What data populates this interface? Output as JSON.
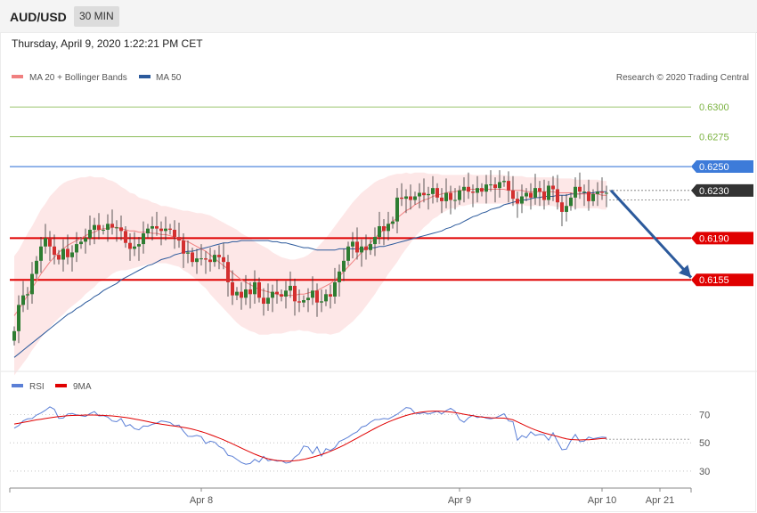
{
  "header": {
    "symbol": "AUD/USD",
    "timeframe": "30 MIN",
    "datetime": "Thursday, April 9, 2020 1:22:21 PM CET"
  },
  "legend": {
    "items": [
      {
        "label": "MA 20 + Bollinger Bands",
        "color": "#f08080"
      },
      {
        "label": "MA 50",
        "color": "#2c5a9c"
      }
    ],
    "credit": "Research © 2020 Trading Central"
  },
  "rsi_legend": {
    "items": [
      {
        "label": "RSI",
        "color": "#5b7fd6"
      },
      {
        "label": "9MA",
        "color": "#e00000"
      }
    ]
  },
  "colors": {
    "bullish": "#2e7d32",
    "bearish": "#d32f2f",
    "resistance": "#7cb342",
    "pivot": "#3d7bd9",
    "support": "#e00000",
    "current": "#333333",
    "band_fill": "#fde3e3",
    "ma20": "#f08080",
    "ma50": "#2c5a9c",
    "arrow": "#2c5a9c"
  },
  "chart_data": [
    {
      "type": "candlestick",
      "price_range": [
        0.6079,
        0.6318
      ],
      "levels": [
        {
          "value": 0.63,
          "label": "0.6300",
          "kind": "resistance"
        },
        {
          "value": 0.6275,
          "label": "0.6275",
          "kind": "resistance"
        },
        {
          "value": 0.625,
          "label": "0.6250",
          "kind": "pivot"
        },
        {
          "value": 0.623,
          "label": "0.6230",
          "kind": "current"
        },
        {
          "value": 0.619,
          "label": "0.6190",
          "kind": "support"
        },
        {
          "value": 0.6155,
          "label": "0.6155",
          "kind": "support"
        }
      ],
      "x_labels": [
        {
          "index": 42,
          "label": "Apr 8"
        },
        {
          "index": 100,
          "label": "Apr 9"
        },
        {
          "index": 132,
          "label": "Apr 10"
        },
        {
          "index": 145,
          "label": "Apr 21"
        }
      ],
      "close": [
        0.6112,
        0.6134,
        0.6142,
        0.6143,
        0.616,
        0.6171,
        0.6183,
        0.619,
        0.6183,
        0.6176,
        0.6172,
        0.6181,
        0.6174,
        0.6178,
        0.6185,
        0.6187,
        0.619,
        0.6197,
        0.6201,
        0.6197,
        0.6197,
        0.6202,
        0.6199,
        0.6199,
        0.6196,
        0.6186,
        0.6181,
        0.6183,
        0.6185,
        0.6194,
        0.6198,
        0.62,
        0.6198,
        0.6196,
        0.6198,
        0.6197,
        0.6191,
        0.6188,
        0.6177,
        0.6178,
        0.617,
        0.6173,
        0.6173,
        0.6172,
        0.617,
        0.6176,
        0.6174,
        0.617,
        0.6153,
        0.6142,
        0.6145,
        0.614,
        0.6147,
        0.6143,
        0.6153,
        0.614,
        0.6135,
        0.614,
        0.6145,
        0.6143,
        0.6141,
        0.6146,
        0.615,
        0.6137,
        0.6136,
        0.6138,
        0.614,
        0.6146,
        0.6136,
        0.6137,
        0.6143,
        0.6141,
        0.6153,
        0.6162,
        0.6171,
        0.6183,
        0.6187,
        0.6178,
        0.6183,
        0.618,
        0.6185,
        0.6191,
        0.62,
        0.6196,
        0.6202,
        0.6204,
        0.6224,
        0.6223,
        0.6225,
        0.6222,
        0.6225,
        0.6228,
        0.6226,
        0.6227,
        0.6232,
        0.6224,
        0.6221,
        0.6228,
        0.6222,
        0.6222,
        0.623,
        0.6233,
        0.6229,
        0.6228,
        0.6232,
        0.6229,
        0.6235,
        0.6235,
        0.6232,
        0.6237,
        0.6238,
        0.623,
        0.6223,
        0.6219,
        0.6225,
        0.6228,
        0.6224,
        0.6232,
        0.6229,
        0.6222,
        0.6234,
        0.6231,
        0.622,
        0.6212,
        0.6217,
        0.6224,
        0.6233,
        0.6229,
        0.6229,
        0.6221,
        0.6227,
        0.6229,
        0.6228,
        0.6228
      ],
      "ma50": [
        0.609,
        0.6093,
        0.6096,
        0.6099,
        0.6102,
        0.6105,
        0.6108,
        0.6111,
        0.6114,
        0.6117,
        0.612,
        0.6123,
        0.6126,
        0.6128,
        0.6131,
        0.6133,
        0.6136,
        0.6138,
        0.6141,
        0.6143,
        0.6146,
        0.6148,
        0.615,
        0.6152,
        0.6155,
        0.6157,
        0.6159,
        0.6161,
        0.6163,
        0.6165,
        0.6167,
        0.6168,
        0.617,
        0.6172,
        0.6173,
        0.6174,
        0.6176,
        0.6177,
        0.6178,
        0.6179,
        0.6179,
        0.618,
        0.6181,
        0.6182,
        0.6183,
        0.6184,
        0.6185,
        0.6186,
        0.6186,
        0.6187,
        0.6187,
        0.6188,
        0.6188,
        0.6188,
        0.6188,
        0.6188,
        0.6188,
        0.6188,
        0.6187,
        0.6187,
        0.6186,
        0.6186,
        0.6185,
        0.6184,
        0.6183,
        0.6182,
        0.6182,
        0.6181,
        0.618,
        0.618,
        0.618,
        0.618,
        0.618,
        0.6181,
        0.6181,
        0.6181,
        0.6181,
        0.6181,
        0.6181,
        0.6181,
        0.6182,
        0.6182,
        0.6183,
        0.6183,
        0.6184,
        0.6185,
        0.6186,
        0.6187,
        0.6188,
        0.6189,
        0.619,
        0.6191,
        0.6192,
        0.6193,
        0.6194,
        0.6195,
        0.6196,
        0.6198,
        0.6199,
        0.6201,
        0.6202,
        0.6204,
        0.6206,
        0.6208,
        0.6209,
        0.6211,
        0.6212,
        0.6214,
        0.6215,
        0.6216,
        0.6218,
        0.6219,
        0.622,
        0.6221,
        0.6222,
        0.6222,
        0.6223,
        0.6224,
        0.6224,
        0.6225,
        0.6225,
        0.6225,
        0.6226,
        0.6226,
        0.6226,
        0.6227,
        0.6227,
        0.6227,
        0.6228,
        0.6228,
        0.6228,
        0.6229,
        0.6229,
        0.6229
      ],
      "ma20": [
        0.6125,
        0.613,
        0.6136,
        0.6142,
        0.6148,
        0.6154,
        0.616,
        0.6165,
        0.617,
        0.6174,
        0.6178,
        0.6181,
        0.6184,
        0.6186,
        0.6188,
        0.619,
        0.6192,
        0.6194,
        0.6195,
        0.6197,
        0.6198,
        0.6198,
        0.6199,
        0.6199,
        0.6198,
        0.6197,
        0.6196,
        0.6196,
        0.6195,
        0.6195,
        0.6195,
        0.6194,
        0.6194,
        0.6193,
        0.6193,
        0.6192,
        0.6191,
        0.619,
        0.6188,
        0.6187,
        0.6185,
        0.6183,
        0.6181,
        0.6179,
        0.6176,
        0.6173,
        0.617,
        0.6167,
        0.6164,
        0.6161,
        0.6158,
        0.6155,
        0.6153,
        0.6151,
        0.6149,
        0.6147,
        0.6146,
        0.6145,
        0.6144,
        0.6143,
        0.6142,
        0.6142,
        0.6142,
        0.6142,
        0.6143,
        0.6143,
        0.6144,
        0.6145,
        0.6146,
        0.6148,
        0.615,
        0.6152,
        0.6155,
        0.6158,
        0.6162,
        0.6166,
        0.617,
        0.6174,
        0.6178,
        0.6182,
        0.6186,
        0.619,
        0.6194,
        0.6197,
        0.6201,
        0.6204,
        0.6207,
        0.621,
        0.6213,
        0.6215,
        0.6218,
        0.622,
        0.6222,
        0.6223,
        0.6225,
        0.6226,
        0.6227,
        0.6228,
        0.6229,
        0.6229,
        0.623,
        0.623,
        0.6231,
        0.6231,
        0.6231,
        0.6231,
        0.6231,
        0.6231,
        0.6231,
        0.6231,
        0.6231,
        0.623,
        0.623,
        0.623,
        0.623,
        0.6229,
        0.6229,
        0.6229,
        0.6229,
        0.6229,
        0.6229,
        0.6229,
        0.6228,
        0.6228,
        0.6228,
        0.6228,
        0.6227,
        0.6227,
        0.6227,
        0.6227,
        0.6227,
        0.6227,
        0.6226,
        0.6226
      ],
      "band_width": [
        0.005,
        0.005,
        0.0051,
        0.0052,
        0.0052,
        0.0053,
        0.0054,
        0.0054,
        0.0055,
        0.0055,
        0.0055,
        0.0055,
        0.0054,
        0.0053,
        0.0052,
        0.0051,
        0.0049,
        0.0048,
        0.0046,
        0.0044,
        0.0043,
        0.0041,
        0.0039,
        0.0037,
        0.0035,
        0.0034,
        0.0032,
        0.0031,
        0.0029,
        0.0028,
        0.0027,
        0.0026,
        0.0025,
        0.0024,
        0.0024,
        0.0024,
        0.0024,
        0.0024,
        0.0025,
        0.0026,
        0.0027,
        0.0028,
        0.003,
        0.0031,
        0.0033,
        0.0034,
        0.0035,
        0.0036,
        0.0037,
        0.0038,
        0.0039,
        0.0039,
        0.0039,
        0.0039,
        0.0038,
        0.0038,
        0.0037,
        0.0036,
        0.0034,
        0.0033,
        0.0032,
        0.0031,
        0.003,
        0.003,
        0.003,
        0.0031,
        0.0032,
        0.0034,
        0.0036,
        0.0038,
        0.004,
        0.0043,
        0.0045,
        0.0047,
        0.0048,
        0.0049,
        0.005,
        0.005,
        0.005,
        0.0049,
        0.0048,
        0.0047,
        0.0045,
        0.0043,
        0.0041,
        0.0039,
        0.0037,
        0.0034,
        0.0032,
        0.0029,
        0.0027,
        0.0025,
        0.0023,
        0.0021,
        0.0019,
        0.0018,
        0.0016,
        0.0015,
        0.0014,
        0.0014,
        0.0013,
        0.0013,
        0.0013,
        0.0012,
        0.0012,
        0.0012,
        0.0012,
        0.0012,
        0.0012,
        0.0012,
        0.0012,
        0.0012,
        0.0012,
        0.0012,
        0.0012,
        0.0012,
        0.0012,
        0.0012,
        0.0012,
        0.0012,
        0.0012,
        0.0012,
        0.0012,
        0.0012,
        0.0012,
        0.0012,
        0.0012,
        0.0012,
        0.0012,
        0.0012,
        0.0012,
        0.0012,
        0.0012,
        0.0012
      ],
      "projection": {
        "from": {
          "index": 134,
          "value": 0.623
        },
        "to": {
          "index": 152,
          "value": 0.6157
        }
      }
    },
    {
      "type": "line",
      "y_ticks": [
        70,
        50,
        30
      ],
      "y_range": [
        18,
        86
      ],
      "series": [
        {
          "name": "RSI",
          "values": [
            60.4,
            62.2,
            65.5,
            66.9,
            67.1,
            69.6,
            71.1,
            73.0,
            75.4,
            73.7,
            67.3,
            67.5,
            70.4,
            70.7,
            69.7,
            69.1,
            68.6,
            70.6,
            72.1,
            69.0,
            69.2,
            68.2,
            65.4,
            64.9,
            67.1,
            61.7,
            62.9,
            60.0,
            59.2,
            61.9,
            61.7,
            63.1,
            63.9,
            65.5,
            65.0,
            64.3,
            62.0,
            62.5,
            58.2,
            54.6,
            54.5,
            55.2,
            54.3,
            49.5,
            51.1,
            50.5,
            47.4,
            45.8,
            41.1,
            40.5,
            38.2,
            36.1,
            34.9,
            35.4,
            38.3,
            36.4,
            40.4,
            37.2,
            38.0,
            37.1,
            37.4,
            35.6,
            36.2,
            39.9,
            42.2,
            47.7,
            47.0,
            42.4,
            47.2,
            40.6,
            45.8,
            44.6,
            46.6,
            50.9,
            52.4,
            54.0,
            56.2,
            57.8,
            61.1,
            62.1,
            64.6,
            66.4,
            66.5,
            67.2,
            66.8,
            68.5,
            70.2,
            72.5,
            74.9,
            74.4,
            70.9,
            70.6,
            71.3,
            70.4,
            71.2,
            72.3,
            70.4,
            72.7,
            74.4,
            72.3,
            66.5,
            64.5,
            67.7,
            69.5,
            67.8,
            68.6,
            67.4,
            66.9,
            67.6,
            69.0,
            70.6,
            65.5,
            64.9,
            51.9,
            55.1,
            53.6,
            57.8,
            55.3,
            55.9,
            55.7,
            51.9,
            57.1,
            50.8,
            45.1,
            45.5,
            51.5,
            55.9,
            50.8,
            51.2,
            54.1,
            52.9,
            53.5,
            54.0,
            53.7
          ]
        },
        {
          "name": "9MA",
          "values": [
            63.3,
            63.8,
            64.4,
            65.0,
            65.6,
            66.2,
            66.7,
            67.2,
            67.7,
            68.1,
            68.5,
            68.8,
            69.1,
            69.3,
            69.4,
            69.5,
            69.6,
            69.6,
            69.6,
            69.5,
            69.4,
            69.2,
            69.0,
            68.7,
            68.3,
            67.9,
            67.4,
            66.8,
            66.2,
            65.6,
            65.0,
            64.3,
            63.7,
            63.2,
            62.7,
            62.2,
            61.8,
            61.4,
            60.9,
            60.3,
            59.6,
            58.8,
            57.9,
            56.9,
            55.8,
            54.6,
            53.4,
            52.1,
            50.7,
            49.3,
            47.8,
            46.3,
            44.8,
            43.4,
            42.0,
            40.7,
            39.6,
            38.7,
            38.0,
            37.5,
            37.2,
            37.1,
            37.1,
            37.3,
            37.7,
            38.3,
            39.0,
            39.8,
            40.7,
            41.7,
            42.8,
            44.0,
            45.3,
            46.8,
            48.3,
            49.9,
            51.6,
            53.3,
            55.1,
            56.8,
            58.5,
            60.2,
            61.8,
            63.3,
            64.7,
            66.0,
            67.2,
            68.3,
            69.3,
            70.2,
            70.9,
            71.5,
            71.9,
            72.2,
            72.4,
            72.4,
            72.3,
            72.1,
            71.8,
            71.3,
            70.8,
            70.2,
            69.6,
            69.1,
            68.6,
            68.2,
            67.9,
            67.7,
            67.6,
            67.5,
            67.4,
            66.9,
            66.2,
            64.8,
            63.3,
            61.8,
            60.4,
            59.1,
            58.0,
            57.0,
            56.1,
            55.3,
            54.5,
            53.6,
            52.8,
            52.3,
            52.1,
            52.0,
            52.1,
            52.2,
            52.4,
            52.7,
            53.0,
            53.2
          ]
        }
      ]
    }
  ]
}
